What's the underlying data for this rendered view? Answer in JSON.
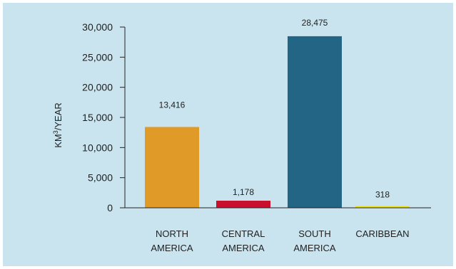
{
  "chart_data": {
    "type": "bar",
    "categories": [
      [
        "NORTH",
        "AMERICA"
      ],
      [
        "CENTRAL",
        "AMERICA"
      ],
      [
        "SOUTH",
        "AMERICA"
      ],
      [
        "CARIBBEAN"
      ]
    ],
    "values": [
      13416,
      1178,
      28475,
      318
    ],
    "value_labels": [
      "13,416",
      "1,178",
      "28,475",
      "318"
    ],
    "bar_colors": [
      "#e09a27",
      "#c8102e",
      "#236584",
      "#f3e600"
    ],
    "ylabel_main": "KM",
    "ylabel_sup": "3",
    "ylabel_rest": "/YEAR",
    "ylim": [
      0,
      30000
    ],
    "yticks": [
      0,
      5000,
      10000,
      15000,
      20000,
      25000,
      30000
    ],
    "ytick_labels": [
      "0",
      "5,000",
      "10,000",
      "15,000",
      "20,000",
      "25,000",
      "30,000"
    ],
    "grid": false,
    "background": "#c9e4ef"
  }
}
